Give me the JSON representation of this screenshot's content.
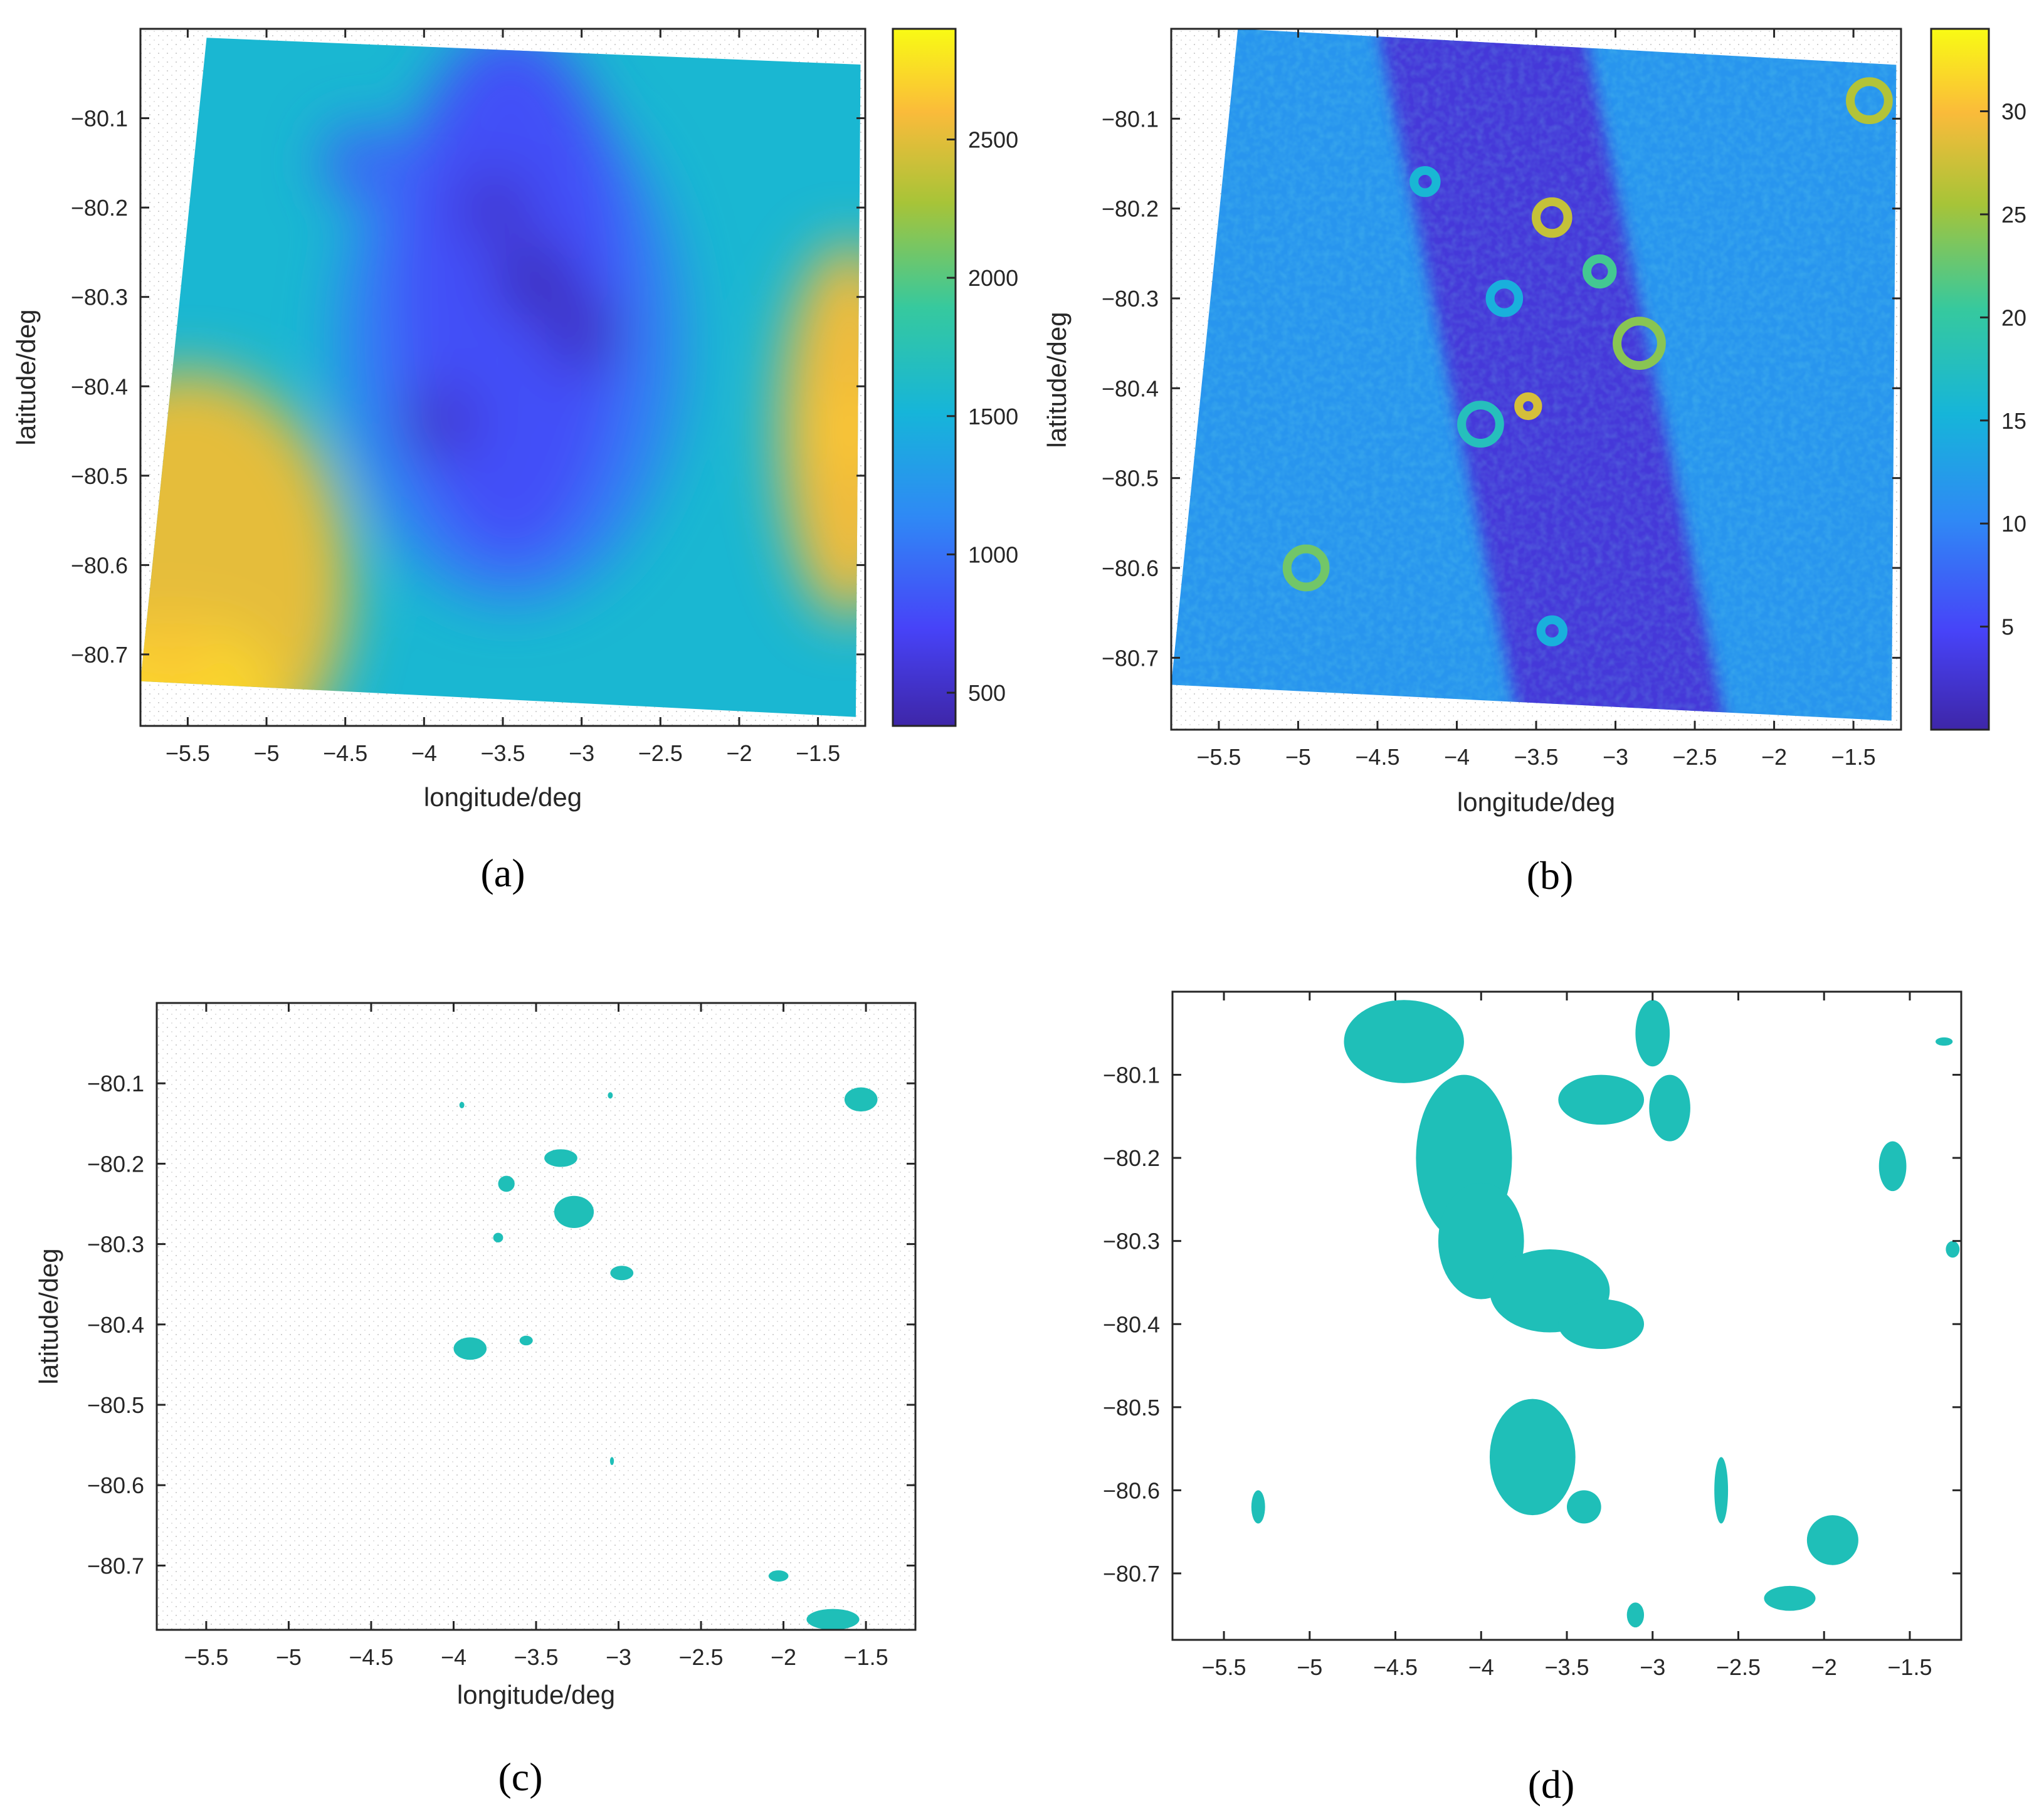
{
  "colors": {
    "cluster": "#1fbfb8",
    "parula": [
      "#3e26a8",
      "#4743f8",
      "#2f89f5",
      "#16b5d9",
      "#36c99e",
      "#a7c438",
      "#fabb3a",
      "#f9fb14"
    ]
  },
  "chart_data": [
    {
      "id": "a",
      "type": "heatmap",
      "panel_label": "(a)",
      "xlabel": "longitude/deg",
      "ylabel": "latitude/deg",
      "xlim": [
        -5.8,
        -1.2
      ],
      "ylim": [
        -80.78,
        -80.0
      ],
      "x_ticks": [
        -5.5,
        -5,
        -4.5,
        -4,
        -3.5,
        -3,
        -2.5,
        -2,
        -1.5
      ],
      "x_tick_labels": [
        "−5.5",
        "−5",
        "−4.5",
        "−4",
        "−3.5",
        "−3",
        "−2.5",
        "−2",
        "−1.5"
      ],
      "y_ticks": [
        -80.1,
        -80.2,
        -80.3,
        -80.4,
        -80.5,
        -80.6,
        -80.7
      ],
      "y_tick_labels": [
        "−80.1",
        "−80.2",
        "−80.3",
        "−80.4",
        "−80.5",
        "−80.6",
        "−80.7"
      ],
      "colorbar": {
        "min": 380,
        "max": 2900,
        "ticks": [
          500,
          1000,
          1500,
          2000,
          2500
        ],
        "tick_labels": [
          "500",
          "1000",
          "1500",
          "2000",
          "2500"
        ]
      },
      "data_corners": {
        "top_left": [
          -5.38,
          -80.01
        ],
        "top_right": [
          -1.23,
          -80.04
        ],
        "bottom_right": [
          -1.26,
          -80.77
        ],
        "bottom_left": [
          -5.8,
          -80.73
        ]
      },
      "description_features": [
        {
          "lon": -4.4,
          "lat": -80.15,
          "value": 900
        },
        {
          "lon": -3.55,
          "lat": -80.2,
          "value": 550
        },
        {
          "lon": -3.3,
          "lat": -80.28,
          "value": 450
        },
        {
          "lon": -3.0,
          "lat": -80.34,
          "value": 500
        },
        {
          "lon": -3.9,
          "lat": -80.44,
          "value": 550
        },
        {
          "lon": -5.6,
          "lat": -80.7,
          "value": 2600
        },
        {
          "lon": -1.3,
          "lat": -80.45,
          "value": 2600
        }
      ]
    },
    {
      "id": "b",
      "type": "heatmap",
      "panel_label": "(b)",
      "xlabel": "longitude/deg",
      "ylabel": "latitude/deg",
      "xlim": [
        -5.8,
        -1.2
      ],
      "ylim": [
        -80.78,
        -80.0
      ],
      "x_ticks": [
        -5.5,
        -5,
        -4.5,
        -4,
        -3.5,
        -3,
        -2.5,
        -2,
        -1.5
      ],
      "x_tick_labels": [
        "−5.5",
        "−5",
        "−4.5",
        "−4",
        "−3.5",
        "−3",
        "−2.5",
        "−2",
        "−1.5"
      ],
      "y_ticks": [
        -80.1,
        -80.2,
        -80.3,
        -80.4,
        -80.5,
        -80.6,
        -80.7
      ],
      "y_tick_labels": [
        "−80.1",
        "−80.2",
        "−80.3",
        "−80.4",
        "−80.5",
        "−80.6",
        "−80.7"
      ],
      "colorbar": {
        "min": 0,
        "max": 34,
        "ticks": [
          5,
          10,
          15,
          20,
          25,
          30
        ],
        "tick_labels": [
          "5",
          "10",
          "15",
          "20",
          "25",
          "30"
        ]
      },
      "data_corners": {
        "top_left": [
          -5.38,
          -80.0
        ],
        "top_right": [
          -1.23,
          -80.04
        ],
        "bottom_right": [
          -1.26,
          -80.77
        ],
        "bottom_left": [
          -5.8,
          -80.73
        ]
      },
      "rings": [
        {
          "lon": -3.4,
          "lat": -80.21,
          "r": 0.1,
          "value": 26
        },
        {
          "lon": -3.55,
          "lat": -80.42,
          "r": 0.06,
          "value": 27
        },
        {
          "lon": -3.85,
          "lat": -80.44,
          "r": 0.12,
          "value": 17
        },
        {
          "lon": -2.85,
          "lat": -80.35,
          "r": 0.14,
          "value": 23
        },
        {
          "lon": -3.1,
          "lat": -80.27,
          "r": 0.08,
          "value": 20
        },
        {
          "lon": -1.4,
          "lat": -80.08,
          "r": 0.12,
          "value": 25
        },
        {
          "lon": -4.95,
          "lat": -80.6,
          "r": 0.12,
          "value": 22
        },
        {
          "lon": -4.2,
          "lat": -80.17,
          "r": 0.07,
          "value": 15
        },
        {
          "lon": -3.7,
          "lat": -80.3,
          "r": 0.09,
          "value": 14
        },
        {
          "lon": -3.4,
          "lat": -80.67,
          "r": 0.07,
          "value": 14
        }
      ]
    },
    {
      "id": "c",
      "type": "heatmap",
      "panel_label": "(c)",
      "xlabel": "longitude/deg",
      "ylabel": "latitude/deg",
      "xlim": [
        -5.8,
        -1.2
      ],
      "ylim": [
        -80.78,
        -80.0
      ],
      "x_ticks": [
        -5.5,
        -5,
        -4.5,
        -4,
        -3.5,
        -3,
        -2.5,
        -2,
        -1.5
      ],
      "x_tick_labels": [
        "−5.5",
        "−5",
        "−4.5",
        "−4",
        "−3.5",
        "−3",
        "−2.5",
        "−2",
        "−1.5"
      ],
      "y_ticks": [
        -80.1,
        -80.2,
        -80.3,
        -80.4,
        -80.5,
        -80.6,
        -80.7
      ],
      "y_tick_labels": [
        "−80.1",
        "−80.2",
        "−80.3",
        "−80.4",
        "−80.5",
        "−80.6",
        "−80.7"
      ],
      "regions": [
        {
          "lon": -3.35,
          "lat": -80.193,
          "rx": 0.1,
          "ry": 0.011
        },
        {
          "lon": -3.68,
          "lat": -80.225,
          "rx": 0.05,
          "ry": 0.01
        },
        {
          "lon": -3.27,
          "lat": -80.26,
          "rx": 0.12,
          "ry": 0.02
        },
        {
          "lon": -3.73,
          "lat": -80.292,
          "rx": 0.03,
          "ry": 0.006
        },
        {
          "lon": -2.98,
          "lat": -80.336,
          "rx": 0.07,
          "ry": 0.009
        },
        {
          "lon": -3.9,
          "lat": -80.43,
          "rx": 0.1,
          "ry": 0.014
        },
        {
          "lon": -3.56,
          "lat": -80.42,
          "rx": 0.04,
          "ry": 0.006
        },
        {
          "lon": -3.95,
          "lat": -80.127,
          "rx": 0.015,
          "ry": 0.004
        },
        {
          "lon": -3.05,
          "lat": -80.115,
          "rx": 0.015,
          "ry": 0.004
        },
        {
          "lon": -3.04,
          "lat": -80.57,
          "rx": 0.012,
          "ry": 0.005
        },
        {
          "lon": -1.53,
          "lat": -80.12,
          "rx": 0.1,
          "ry": 0.015
        },
        {
          "lon": -2.03,
          "lat": -80.713,
          "rx": 0.06,
          "ry": 0.007
        },
        {
          "lon": -1.7,
          "lat": -80.767,
          "rx": 0.16,
          "ry": 0.013
        }
      ]
    },
    {
      "id": "d",
      "type": "heatmap",
      "panel_label": "(d)",
      "xlabel": "",
      "ylabel": "",
      "xlim": [
        -5.8,
        -1.2
      ],
      "ylim": [
        -80.78,
        -80.0
      ],
      "x_ticks": [
        -5.5,
        -5,
        -4.5,
        -4,
        -3.5,
        -3,
        -2.5,
        -2,
        -1.5
      ],
      "x_tick_labels": [
        "−5.5",
        "−5",
        "−4.5",
        "−4",
        "−3.5",
        "−3",
        "−2.5",
        "−2",
        "−1.5"
      ],
      "y_ticks": [
        -80.1,
        -80.2,
        -80.3,
        -80.4,
        -80.5,
        -80.6,
        -80.7
      ],
      "y_tick_labels": [
        "−80.1",
        "−80.2",
        "−80.3",
        "−80.4",
        "−80.5",
        "−80.6",
        "−80.7"
      ],
      "regions": [
        {
          "lon": -4.45,
          "lat": -80.06,
          "rx": 0.35,
          "ry": 0.05
        },
        {
          "lon": -4.1,
          "lat": -80.2,
          "rx": 0.28,
          "ry": 0.1
        },
        {
          "lon": -4.0,
          "lat": -80.3,
          "rx": 0.25,
          "ry": 0.07
        },
        {
          "lon": -3.6,
          "lat": -80.36,
          "rx": 0.35,
          "ry": 0.05
        },
        {
          "lon": -3.3,
          "lat": -80.4,
          "rx": 0.25,
          "ry": 0.03
        },
        {
          "lon": -3.7,
          "lat": -80.56,
          "rx": 0.25,
          "ry": 0.07
        },
        {
          "lon": -3.3,
          "lat": -80.13,
          "rx": 0.25,
          "ry": 0.03
        },
        {
          "lon": -2.9,
          "lat": -80.14,
          "rx": 0.12,
          "ry": 0.04
        },
        {
          "lon": -3.0,
          "lat": -80.05,
          "rx": 0.1,
          "ry": 0.04
        },
        {
          "lon": -1.6,
          "lat": -80.21,
          "rx": 0.08,
          "ry": 0.03
        },
        {
          "lon": -1.95,
          "lat": -80.66,
          "rx": 0.15,
          "ry": 0.03
        },
        {
          "lon": -2.2,
          "lat": -80.73,
          "rx": 0.15,
          "ry": 0.015
        },
        {
          "lon": -3.4,
          "lat": -80.62,
          "rx": 0.1,
          "ry": 0.02
        },
        {
          "lon": -5.3,
          "lat": -80.62,
          "rx": 0.04,
          "ry": 0.02
        },
        {
          "lon": -1.25,
          "lat": -80.31,
          "rx": 0.04,
          "ry": 0.01
        },
        {
          "lon": -1.3,
          "lat": -80.06,
          "rx": 0.05,
          "ry": 0.005
        },
        {
          "lon": -2.6,
          "lat": -80.6,
          "rx": 0.04,
          "ry": 0.04
        },
        {
          "lon": -3.1,
          "lat": -80.75,
          "rx": 0.05,
          "ry": 0.015
        }
      ]
    }
  ]
}
